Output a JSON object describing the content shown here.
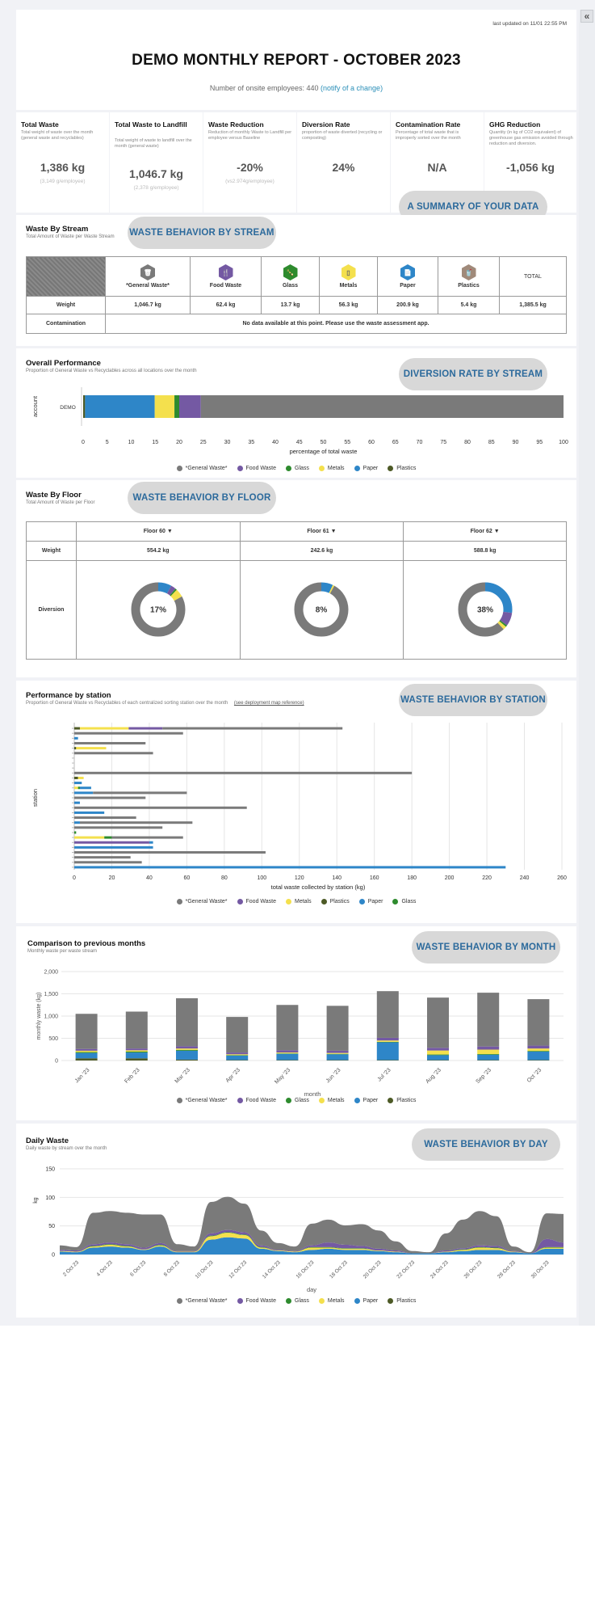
{
  "header": {
    "updated": "last updated on 11/01 22:55 PM",
    "title": "DEMO MONTHLY REPORT - OCTOBER 2023",
    "employees_text": "Number of onsite employees: 440",
    "notify_link": "(notify of a change)"
  },
  "kpis": [
    {
      "title": "Total Waste",
      "desc": "Total weight of waste over the month (general waste and recyclables)",
      "value": "1,386 kg",
      "sub": "(3,149 g/employee)"
    },
    {
      "title": "Total Waste to Landfill",
      "desc": "Total weight of waste to landfill over the month (general waste)",
      "value": "1,046.7 kg",
      "sub": "(2,378 g/employee)"
    },
    {
      "title": "Waste Reduction",
      "desc": "Reduction of monthly Waste to Landfill per employee versus Baseline",
      "value": "-20%",
      "sub": "(vs2.974g/employee)"
    },
    {
      "title": "Diversion Rate",
      "desc": "proportion of waste diverted (recycling or composting)",
      "value": "24%",
      "sub": ""
    },
    {
      "title": "Contamination Rate",
      "desc": "Percentage of total waste that is improperly sorted over the month",
      "value": "N/A",
      "sub": ""
    },
    {
      "title": "GHG Reduction",
      "desc": "Quantity (in kg of CO2 equivalent) of greenhouse gas emission avoided through reduction and diversion.",
      "value": "-1,056 kg",
      "sub": ""
    }
  ],
  "pills": {
    "summary": "A SUMMARY OF YOUR DATA",
    "stream": "WASTE BEHAVIOR BY STREAM",
    "diversion": "DIVERSION RATE BY STREAM",
    "floor": "WASTE BEHAVIOR BY FLOOR",
    "station": "WASTE BEHAVIOR BY STATION",
    "month": "WASTE BEHAVIOR BY MONTH",
    "day": "WASTE BEHAVIOR BY DAY"
  },
  "colors": {
    "general": "#7a7a7a",
    "food": "#7459a3",
    "glass": "#2e8b2e",
    "metals": "#f4e04d",
    "paper": "#2e86c8",
    "plastics": "#4d5a26"
  },
  "stream": {
    "title": "Waste By Stream",
    "subtitle": "Total Amount of Waste per Waste Stream",
    "columns": [
      {
        "name": "*General Waste*",
        "color": "#7a7a7a",
        "icon": "trash-icon",
        "glyph": "🗑",
        "weight": "1,046.7 kg"
      },
      {
        "name": "Food Waste",
        "color": "#7459a3",
        "icon": "food-icon",
        "glyph": "🍴",
        "weight": "62.4 kg"
      },
      {
        "name": "Glass",
        "color": "#2e8b2e",
        "icon": "bottle-icon",
        "glyph": "🍾",
        "weight": "13.7 kg"
      },
      {
        "name": "Metals",
        "color": "#f4e04d",
        "icon": "can-icon",
        "glyph": "▯",
        "weight": "56.3 kg"
      },
      {
        "name": "Paper",
        "color": "#2e86c8",
        "icon": "paper-icon",
        "glyph": "📄",
        "weight": "200.9 kg"
      },
      {
        "name": "Plastics",
        "color": "#a08a7a",
        "icon": "plastic-icon",
        "glyph": "🥤",
        "weight": "5.4 kg"
      }
    ],
    "total_label": "TOTAL",
    "total_weight": "1,385.5 kg",
    "row_weight": "Weight",
    "row_contamination": "Contamination",
    "contamination_text": "No data available at this point. Please use the waste assessment app."
  },
  "overall": {
    "title": "Overall Performance",
    "subtitle": "Proportion of General Waste vs Recyclables across all locations over the month",
    "chart_data": {
      "type": "bar",
      "orientation": "horizontal-stacked",
      "categories": [
        "DEMO"
      ],
      "ylabel": "account",
      "xlabel": "percentage of total waste",
      "xlim": [
        0,
        100
      ],
      "xticks": [
        0,
        5,
        10,
        15,
        20,
        25,
        30,
        35,
        40,
        45,
        50,
        55,
        60,
        65,
        70,
        75,
        80,
        85,
        90,
        95,
        100
      ],
      "series": [
        {
          "name": "Plastics",
          "values": [
            0.4
          ]
        },
        {
          "name": "Paper",
          "values": [
            14.5
          ]
        },
        {
          "name": "Metals",
          "values": [
            4.1
          ]
        },
        {
          "name": "Glass",
          "values": [
            1.0
          ]
        },
        {
          "name": "Food Waste",
          "values": [
            4.5
          ]
        },
        {
          "name": "*General Waste*",
          "values": [
            75.5
          ]
        }
      ]
    },
    "legend": [
      "*General Waste*",
      "Food Waste",
      "Glass",
      "Metals",
      "Paper",
      "Plastics"
    ]
  },
  "floor": {
    "title": "Waste By Floor",
    "subtitle": "Total Amount of Waste per Floor",
    "row_weight": "Weight",
    "row_diversion": "Diversion",
    "floors": [
      {
        "name": "Floor 60",
        "weight": "554.2 kg",
        "diversion": "17%",
        "shares": {
          "general": 83,
          "food": 3,
          "glass": 1,
          "metals": 5,
          "paper": 8
        }
      },
      {
        "name": "Floor 61",
        "weight": "242.6 kg",
        "diversion": "8%",
        "shares": {
          "general": 92,
          "food": 0,
          "glass": 0,
          "metals": 1,
          "paper": 7
        }
      },
      {
        "name": "Floor 62",
        "weight": "588.8 kg",
        "diversion": "38%",
        "shares": {
          "general": 62,
          "food": 8,
          "glass": 1,
          "metals": 2,
          "paper": 27
        }
      }
    ]
  },
  "station": {
    "title": "Performance by station",
    "subtitle": "Proportion of General Waste vs Recyclables of each centralized sorting station over the month",
    "link": "(see deployment map reference)",
    "chart_data": {
      "type": "bar",
      "orientation": "horizontal-stacked",
      "ylabel": "station",
      "xlabel": "total waste collected by station (kg)",
      "xlim": [
        0,
        260
      ],
      "xticks": [
        0,
        20,
        40,
        60,
        80,
        100,
        120,
        140,
        160,
        180,
        200,
        220,
        240,
        260
      ],
      "rows": [
        {
          "general": 96,
          "food": 18,
          "metals": 26,
          "plastics": 3
        },
        {
          "general": 58
        },
        {
          "paper": 2
        },
        {
          "general": 38
        },
        {
          "metals": 16,
          "plastics": 1
        },
        {
          "general": 42
        },
        {},
        {},
        {},
        {
          "general": 180
        },
        {
          "metals": 3,
          "plastics": 2
        },
        {
          "paper": 4
        },
        {
          "paper": 6,
          "metals": 2,
          "glass": 1
        },
        {
          "general": 50,
          "paper": 10
        },
        {
          "general": 38
        },
        {
          "paper": 3
        },
        {
          "general": 92
        },
        {
          "paper": 16
        },
        {
          "general": 33
        },
        {
          "general": 60,
          "paper": 3
        },
        {
          "general": 47
        },
        {
          "glass": 1
        },
        {
          "general": 38,
          "metals": 16,
          "glass": 4
        },
        {
          "food": 40,
          "paper": 2
        },
        {
          "paper": 42
        },
        {
          "general": 102
        },
        {
          "general": 30
        },
        {
          "general": 36
        },
        {
          "paper": 230
        }
      ]
    },
    "legend": [
      "*General Waste*",
      "Food Waste",
      "Metals",
      "Plastics",
      "Paper",
      "Glass"
    ]
  },
  "monthly": {
    "title": "Comparison to previous months",
    "subtitle": "Monthly waste per waste stream",
    "chart_data": {
      "type": "bar",
      "orientation": "vertical-stacked",
      "categories": [
        "Jan '23",
        "Feb '23",
        "Mar '23",
        "Apr '23",
        "May '23",
        "Jun '23",
        "Jul '23",
        "Aug '23",
        "Sep '23",
        "Oct '23"
      ],
      "ylabel": "monthly waste (kg)",
      "xlabel": "month",
      "ylim": [
        0,
        2000
      ],
      "yticks": [
        0,
        500,
        1000,
        1500,
        2000
      ],
      "series": [
        {
          "name": "Plastics",
          "values": [
            50,
            50,
            20,
            10,
            10,
            10,
            10,
            10,
            10,
            10
          ]
        },
        {
          "name": "Paper",
          "values": [
            120,
            130,
            200,
            100,
            140,
            130,
            400,
            110,
            120,
            190
          ]
        },
        {
          "name": "Glass",
          "values": [
            20,
            20,
            20,
            10,
            10,
            10,
            10,
            15,
            15,
            15
          ]
        },
        {
          "name": "Metals",
          "values": [
            30,
            30,
            30,
            20,
            20,
            20,
            30,
            90,
            100,
            55
          ]
        },
        {
          "name": "Food Waste",
          "values": [
            40,
            40,
            50,
            40,
            50,
            50,
            60,
            60,
            70,
            65
          ]
        },
        {
          "name": "*General Waste*",
          "values": [
            790,
            830,
            1080,
            800,
            1020,
            1010,
            1050,
            1130,
            1210,
            1045
          ]
        }
      ]
    },
    "legend": [
      "*General Waste*",
      "Food Waste",
      "Glass",
      "Metals",
      "Paper",
      "Plastics"
    ]
  },
  "daily": {
    "title": "Daily Waste",
    "subtitle": "Daily waste by stream over the month",
    "chart_data": {
      "type": "area",
      "stacked": true,
      "ylabel": "kg",
      "xlabel": "day",
      "ylim": [
        0,
        150
      ],
      "yticks": [
        0,
        50,
        100,
        150
      ],
      "x": [
        "1 Oct 23",
        "2 Oct 23",
        "3 Oct 23",
        "4 Oct 23",
        "5 Oct 23",
        "6 Oct 23",
        "7 Oct 23",
        "8 Oct 23",
        "9 Oct 23",
        "10 Oct 23",
        "11 Oct 23",
        "12 Oct 23",
        "13 Oct 23",
        "14 Oct 23",
        "15 Oct 23",
        "16 Oct 23",
        "17 Oct 23",
        "18 Oct 23",
        "19 Oct 23",
        "20 Oct 23",
        "21 Oct 23",
        "22 Oct 23",
        "23 Oct 23",
        "24 Oct 23",
        "25 Oct 23",
        "26 Oct 23",
        "27 Oct 23",
        "28 Oct 23",
        "29 Oct 23",
        "30 Oct 23",
        "31 Oct 23"
      ],
      "xticks": [
        "2 Oct 23",
        "4 Oct 23",
        "6 Oct 23",
        "8 Oct 23",
        "10 Oct 23",
        "12 Oct 23",
        "14 Oct 23",
        "16 Oct 23",
        "18 Oct 23",
        "20 Oct 23",
        "22 Oct 23",
        "24 Oct 23",
        "26 Oct 23",
        "28 Oct 23",
        "30 Oct 23"
      ],
      "series": [
        {
          "name": "Paper",
          "values": [
            5,
            4,
            12,
            14,
            12,
            8,
            14,
            4,
            4,
            26,
            30,
            28,
            10,
            6,
            4,
            8,
            10,
            8,
            8,
            6,
            4,
            2,
            2,
            4,
            6,
            8,
            8,
            4,
            2,
            10,
            10
          ]
        },
        {
          "name": "Metals",
          "values": [
            1,
            1,
            2,
            3,
            2,
            1,
            2,
            1,
            1,
            6,
            8,
            6,
            2,
            1,
            1,
            4,
            2,
            2,
            2,
            1,
            1,
            0,
            0,
            1,
            2,
            4,
            3,
            1,
            0,
            2,
            2
          ]
        },
        {
          "name": "Glass",
          "values": [
            0,
            0,
            1,
            1,
            1,
            0,
            1,
            0,
            0,
            1,
            1,
            1,
            1,
            0,
            0,
            1,
            1,
            1,
            1,
            0,
            0,
            0,
            0,
            0,
            1,
            1,
            1,
            0,
            0,
            1,
            1
          ]
        },
        {
          "name": "Food Waste",
          "values": [
            2,
            2,
            3,
            3,
            3,
            3,
            3,
            1,
            1,
            4,
            4,
            4,
            3,
            1,
            1,
            3,
            8,
            6,
            4,
            3,
            2,
            0,
            0,
            2,
            2,
            3,
            3,
            1,
            0,
            14,
            8
          ]
        },
        {
          "name": "*General Waste*",
          "values": [
            8,
            6,
            55,
            55,
            55,
            58,
            50,
            12,
            8,
            55,
            58,
            50,
            26,
            12,
            8,
            38,
            40,
            34,
            38,
            32,
            16,
            4,
            2,
            30,
            50,
            60,
            52,
            8,
            2,
            45,
            50
          ]
        },
        {
          "name": "Plastics",
          "values": [
            0,
            0,
            0,
            0,
            0,
            0,
            0,
            0,
            0,
            0,
            0,
            0,
            0,
            0,
            0,
            0,
            0,
            0,
            0,
            0,
            0,
            0,
            0,
            0,
            0,
            0,
            0,
            0,
            0,
            0,
            0
          ]
        }
      ]
    },
    "legend": [
      "*General Waste*",
      "Food Waste",
      "Glass",
      "Metals",
      "Paper",
      "Plastics"
    ]
  }
}
